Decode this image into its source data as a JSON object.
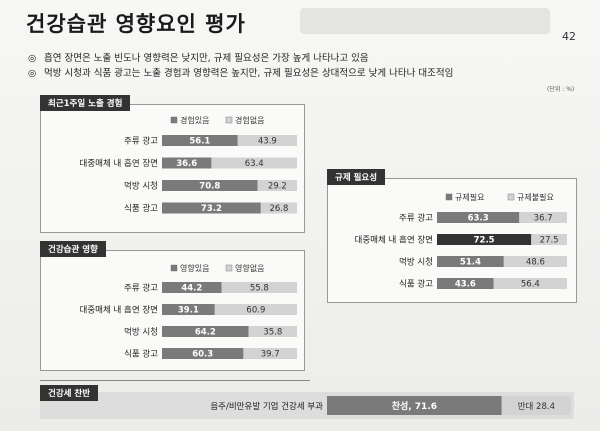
{
  "slide": {
    "title": "건강습관 영향요인 평가",
    "page_number": "42",
    "bullets": [
      {
        "mark": "◎",
        "text": "흡연 장면은 노출 빈도나 영향력은 낮지만, 규제 필요성은 가장 높게 나타나고 있음"
      },
      {
        "mark": "◎",
        "text": "먹방 시청과 식품 광고는 노출 경험과 영향력은 높지만, 규제 필요성은 상대적으로 낮게 나타나 대조적임"
      }
    ],
    "unit": "(단위 : %)"
  },
  "chart_data": [
    {
      "type": "bar",
      "stacked": true,
      "orientation": "horizontal",
      "title": "최근1주일 노출 경험",
      "categories": [
        "주류 광고",
        "대중매체 내 흡연 장면",
        "먹방 시청",
        "식품 광고"
      ],
      "series": [
        {
          "name": "경험있음",
          "values": [
            56.1,
            36.6,
            70.8,
            73.2
          ],
          "color": "#7a7a7a"
        },
        {
          "name": "경험없음",
          "values": [
            43.9,
            63.4,
            29.2,
            26.8
          ],
          "color": "#d3d3d3"
        }
      ]
    },
    {
      "type": "bar",
      "stacked": true,
      "orientation": "horizontal",
      "title": "건강습관 영향",
      "categories": [
        "주류 광고",
        "대중매체 내 흡연 장면",
        "먹방 시청",
        "식품 광고"
      ],
      "series": [
        {
          "name": "영향있음",
          "values": [
            44.2,
            39.1,
            64.2,
            60.3
          ],
          "color": "#7a7a7a"
        },
        {
          "name": "영향없음",
          "values": [
            55.8,
            60.9,
            35.8,
            39.7
          ],
          "color": "#d3d3d3"
        }
      ]
    },
    {
      "type": "bar",
      "stacked": true,
      "orientation": "horizontal",
      "title": "규제 필요성",
      "categories": [
        "주류 광고",
        "대중매체 내 흡연 장면",
        "먹방 시청",
        "식품 광고"
      ],
      "series": [
        {
          "name": "규제필요",
          "values": [
            63.3,
            72.5,
            51.4,
            43.6
          ],
          "color": "#7a7a7a",
          "highlight_color": "#333333"
        },
        {
          "name": "규제불필요",
          "values": [
            36.7,
            27.5,
            48.6,
            56.4
          ],
          "color": "#d3d3d3"
        }
      ]
    },
    {
      "type": "bar",
      "stacked": true,
      "orientation": "horizontal",
      "title": "건강세 찬반",
      "categories": [
        "음주/비만유발 기업 건강세 부과"
      ],
      "series": [
        {
          "name": "찬성",
          "values": [
            71.6
          ],
          "color": "#7a7a7a"
        },
        {
          "name": "반대",
          "values": [
            28.4
          ],
          "color": "#d3d3d3"
        }
      ]
    }
  ]
}
